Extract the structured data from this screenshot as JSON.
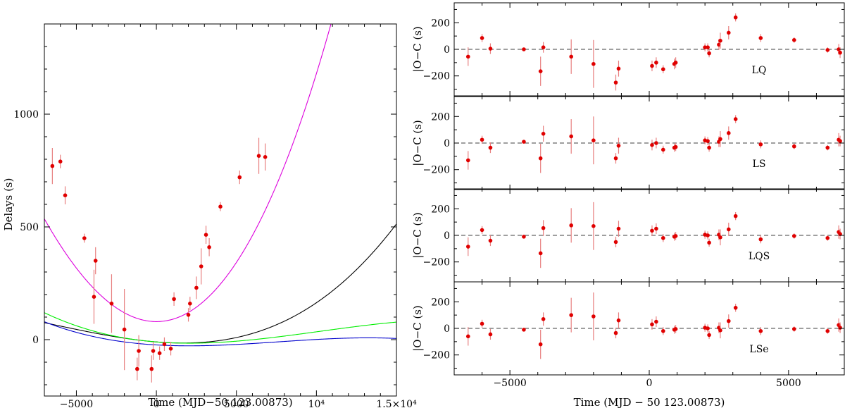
{
  "chart_data": [
    {
      "type": "scatter",
      "ylabel": "Delays (s)",
      "xlabel": "Time (MJD−50 123.00873)",
      "xlim": [
        -7000,
        15000
      ],
      "ylim": [
        -250,
        1400
      ],
      "xticks": [
        {
          "v": -5000,
          "label": "−5000"
        },
        {
          "v": 0,
          "label": "0"
        },
        {
          "v": 5000,
          "label": "5000"
        },
        {
          "v": 10000,
          "label": "10⁴"
        },
        {
          "v": 15000,
          "label": "1.5×10⁴"
        }
      ],
      "yticks": [
        {
          "v": 0,
          "label": "0"
        },
        {
          "v": 500,
          "label": "500"
        },
        {
          "v": 1000,
          "label": "1000"
        }
      ],
      "colors": {
        "points": "#e00000",
        "errorbars": "#e88080",
        "curves": [
          "#000000",
          "#00ee00",
          "#0000cc",
          "#dd00dd"
        ]
      },
      "series": [
        {
          "x": [
            -6500,
            -6000,
            -5700,
            -4500,
            -3900,
            -3800,
            -2800,
            -2000,
            -1200,
            -1100,
            -300,
            -200,
            200,
            500,
            900,
            1100,
            2000,
            2100,
            2500,
            2800,
            3100,
            3300,
            4000,
            5200,
            6400,
            6800
          ],
          "y": [
            770,
            790,
            640,
            450,
            190,
            350,
            160,
            45,
            -130,
            -50,
            -130,
            -50,
            -60,
            -20,
            -40,
            180,
            110,
            160,
            230,
            325,
            465,
            410,
            590,
            720,
            815,
            810
          ],
          "err": [
            80,
            30,
            40,
            20,
            120,
            60,
            130,
            180,
            50,
            70,
            60,
            40,
            30,
            30,
            30,
            30,
            30,
            30,
            50,
            80,
            40,
            40,
            20,
            30,
            80,
            60
          ]
        }
      ],
      "fits": [
        {
          "color": "#000000",
          "coeffs": [
            -10.1,
            -0.005617,
            1.5e-06,
            8e-11
          ]
        },
        {
          "color": "#00ee00",
          "coeffs": [
            -10.1,
            -0.005617,
            1.5e-06,
            -4.9e-11
          ]
        },
        {
          "color": "#0000cc",
          "coeffs": [
            -23.4,
            -0.004103,
            1.158e-06,
            -5.05e-11
          ]
        },
        {
          "color": "#dd00dd",
          "coeffs": [
            80.0,
            0.0,
            1e-05,
            1e-10
          ],
          "note": "x0=0"
        }
      ]
    },
    {
      "type": "scatter",
      "panels": [
        "LQ",
        "LS",
        "LQS",
        "LSe"
      ],
      "ylabel": "O−C (s)",
      "xlabel": "Time (MJD − 50 123.00873)",
      "xlim": [
        -7000,
        7000
      ],
      "ylim": [
        -350,
        350
      ],
      "xticks": [
        {
          "v": -5000,
          "label": "−5000"
        },
        {
          "v": 0,
          "label": "0"
        },
        {
          "v": 5000,
          "label": "5000"
        }
      ],
      "yticks": [
        {
          "v": 200,
          "label": "200"
        },
        {
          "v": 0,
          "label": "0"
        },
        {
          "v": -200,
          "label": "−200"
        }
      ],
      "x": [
        -6500,
        -6000,
        -5700,
        -4500,
        -3900,
        -3800,
        -2800,
        -2000,
        -1200,
        -1100,
        100,
        250,
        500,
        900,
        950,
        2000,
        2100,
        2150,
        2500,
        2550,
        2850,
        3100,
        4000,
        5200,
        6400,
        6800,
        6850
      ],
      "series": [
        {
          "name": "LQ",
          "y": [
            -55,
            85,
            5,
            0,
            -165,
            15,
            -55,
            -110,
            -250,
            -145,
            -125,
            -100,
            -150,
            -110,
            -100,
            15,
            15,
            -30,
            35,
            65,
            125,
            240,
            85,
            70,
            -5,
            0,
            -25
          ],
          "err": [
            70,
            30,
            40,
            10,
            110,
            40,
            130,
            180,
            60,
            60,
            40,
            40,
            30,
            40,
            40,
            30,
            30,
            30,
            40,
            60,
            50,
            30,
            30,
            20,
            20,
            40,
            40
          ]
        },
        {
          "name": "LS",
          "y": [
            -130,
            25,
            -35,
            10,
            -115,
            70,
            50,
            20,
            -115,
            -20,
            -15,
            0,
            -50,
            -35,
            -30,
            20,
            15,
            -35,
            10,
            30,
            75,
            180,
            -10,
            -25,
            -35,
            25,
            15
          ],
          "err": [
            70,
            30,
            40,
            10,
            110,
            60,
            130,
            180,
            40,
            60,
            40,
            40,
            30,
            30,
            30,
            30,
            30,
            30,
            40,
            60,
            50,
            30,
            30,
            20,
            20,
            50,
            40
          ]
        },
        {
          "name": "LQS",
          "y": [
            -85,
            40,
            -40,
            -10,
            -135,
            55,
            75,
            70,
            -50,
            50,
            35,
            50,
            -20,
            -10,
            -5,
            5,
            0,
            -55,
            5,
            -15,
            45,
            145,
            -30,
            -5,
            -20,
            25,
            10
          ],
          "err": [
            70,
            30,
            40,
            10,
            110,
            60,
            130,
            180,
            40,
            60,
            40,
            40,
            30,
            30,
            30,
            30,
            30,
            30,
            40,
            60,
            50,
            30,
            30,
            20,
            20,
            50,
            40
          ]
        },
        {
          "name": "LSe",
          "y": [
            -60,
            35,
            -45,
            -10,
            -120,
            70,
            100,
            90,
            -35,
            60,
            30,
            50,
            -20,
            -10,
            -5,
            5,
            0,
            -50,
            5,
            -15,
            55,
            155,
            -20,
            -5,
            -20,
            25,
            5
          ],
          "err": [
            70,
            30,
            40,
            10,
            110,
            50,
            130,
            180,
            40,
            60,
            40,
            40,
            30,
            30,
            30,
            30,
            30,
            30,
            40,
            60,
            50,
            30,
            30,
            20,
            20,
            50,
            40
          ]
        }
      ]
    }
  ]
}
